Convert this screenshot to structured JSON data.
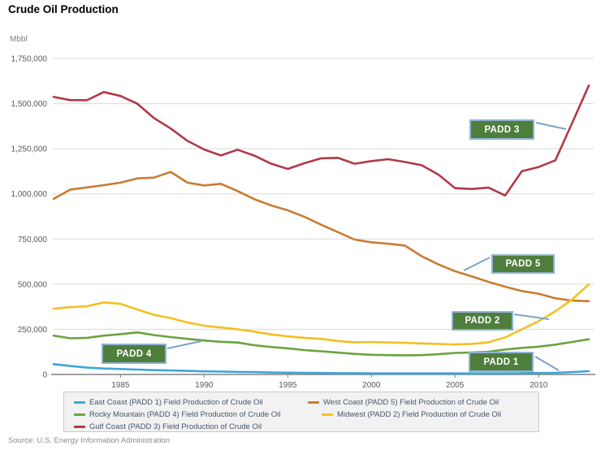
{
  "page": {
    "title": "Crude Oil Production",
    "source": "Source: U.S. Energy Information Administration"
  },
  "annotations": {
    "padd3": "PADD 3",
    "padd5": "PADD 5",
    "padd2": "PADD 2",
    "padd4": "PADD 4",
    "padd1": "PADD 1"
  },
  "colors": {
    "annotation_fill": "#4e7e3c",
    "annotation_border": "#8fb2d4",
    "callout_line": "#7ba3c9",
    "gridline": "#d9d9d9",
    "axis_line": "#808080",
    "tick_label": "#595959",
    "legend_text": "#44546a",
    "legend_background": "#f2f2f2"
  },
  "chart_data": {
    "type": "line",
    "title": "Crude Oil Production",
    "unit_label": "Mbbl",
    "xlabel": "",
    "ylabel": "Mbbl",
    "ylim": [
      0,
      1750000
    ],
    "y_tick_step": 250000,
    "y_tick_labels": [
      "0",
      "250,000",
      "500,000",
      "750,000",
      "1,000,000",
      "1,250,000",
      "1,500,000",
      "1,750,000"
    ],
    "grid": true,
    "legend_position": "bottom",
    "x": [
      1981,
      1982,
      1983,
      1984,
      1985,
      1986,
      1987,
      1988,
      1989,
      1990,
      1991,
      1992,
      1993,
      1994,
      1995,
      1996,
      1997,
      1998,
      1999,
      2000,
      2001,
      2002,
      2003,
      2004,
      2005,
      2006,
      2007,
      2008,
      2009,
      2010,
      2011,
      2012,
      2013
    ],
    "x_ticks": [
      1985,
      1990,
      1995,
      2000,
      2005,
      2010
    ],
    "series": [
      {
        "name": "East Coast (PADD 1) Field Production of Crude Oil",
        "padd": "padd1",
        "color": "#3fa5da",
        "values": [
          57000,
          47000,
          38000,
          33000,
          30000,
          27000,
          24000,
          22000,
          20000,
          17000,
          16000,
          14000,
          13000,
          11000,
          10000,
          9000,
          8000,
          7000,
          7000,
          6000,
          6000,
          6000,
          6000,
          6000,
          6000,
          6000,
          6000,
          6000,
          7000,
          8000,
          9000,
          13000,
          18000
        ]
      },
      {
        "name": "West Coast (PADD 5) Field Production of Crude Oil",
        "padd": "padd5",
        "color": "#c87c33",
        "values": [
          972000,
          1024000,
          1036000,
          1048000,
          1062000,
          1086000,
          1090000,
          1122000,
          1062000,
          1047000,
          1056000,
          1016000,
          971000,
          936000,
          909000,
          873000,
          829000,
          788000,
          747000,
          732000,
          724000,
          714000,
          655000,
          610000,
          572000,
          543000,
          513000,
          486000,
          462000,
          447000,
          422000,
          409000,
          406000
        ]
      },
      {
        "name": "Rocky Mountain (PADD 4) Field Production of Crude Oil",
        "padd": "padd4",
        "color": "#6ba33f",
        "values": [
          215000,
          200000,
          203000,
          215000,
          223000,
          233000,
          218000,
          207000,
          197000,
          188000,
          181000,
          177000,
          162000,
          152000,
          145000,
          135000,
          128000,
          121000,
          114000,
          109000,
          107000,
          106000,
          107000,
          112000,
          119000,
          122000,
          126000,
          138000,
          147000,
          154000,
          165000,
          180000,
          195000
        ]
      },
      {
        "name": "Midwest (PADD 2) Field Production of Crude Oil",
        "padd": "padd2",
        "color": "#f2c022",
        "values": [
          364000,
          373000,
          378000,
          399000,
          391000,
          360000,
          330000,
          312000,
          288000,
          270000,
          260000,
          250000,
          237000,
          222000,
          211000,
          203000,
          197000,
          185000,
          178000,
          180000,
          177000,
          175000,
          172000,
          169000,
          166000,
          169000,
          178000,
          205000,
          250000,
          295000,
          350000,
          415000,
          500000
        ]
      },
      {
        "name": "Gulf Coast (PADD 3) Field Production of Crude Oil",
        "padd": "padd3",
        "color": "#b03a48",
        "values": [
          1537000,
          1519000,
          1519000,
          1564000,
          1542000,
          1500000,
          1420000,
          1362000,
          1294000,
          1246000,
          1213000,
          1245000,
          1212000,
          1168000,
          1138000,
          1170000,
          1197000,
          1200000,
          1167000,
          1182000,
          1192000,
          1177000,
          1159000,
          1107000,
          1032000,
          1027000,
          1035000,
          991000,
          1126000,
          1149000,
          1186000,
          1392000,
          1600000
        ]
      }
    ],
    "annotations": [
      {
        "label": "PADD 3",
        "points_to": "Gulf Coast series near 2011"
      },
      {
        "label": "PADD 5",
        "points_to": "West Coast series near 2005"
      },
      {
        "label": "PADD 2",
        "points_to": "Midwest series near 2011"
      },
      {
        "label": "PADD 4",
        "points_to": "Rocky Mountain series near 1990"
      },
      {
        "label": "PADD 1",
        "points_to": "East Coast series near 2011"
      }
    ]
  }
}
